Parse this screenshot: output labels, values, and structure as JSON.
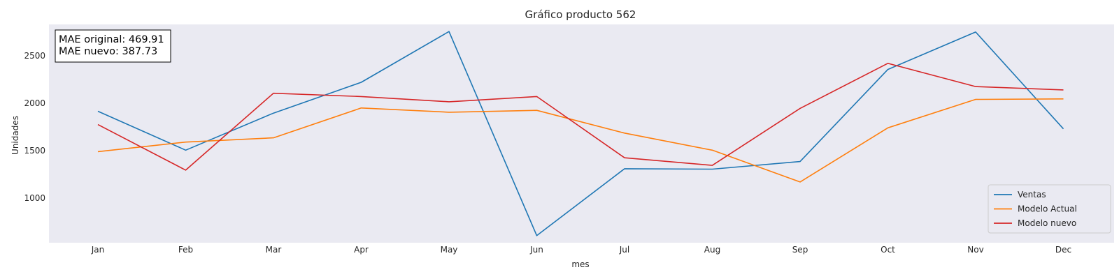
{
  "chart_data": {
    "type": "line",
    "title": "Gráfico producto 562",
    "xlabel": "mes",
    "ylabel": "Unidades",
    "categories": [
      "Jan",
      "Feb",
      "Mar",
      "Apr",
      "May",
      "Jun",
      "Jul",
      "Aug",
      "Sep",
      "Oct",
      "Nov",
      "Dec"
    ],
    "ylim": [
      530,
      2830
    ],
    "yticks": [
      1000,
      1500,
      2000,
      2500
    ],
    "grid": false,
    "legend_position": "bottom-right",
    "series": [
      {
        "name": "Ventas",
        "color": "#1f77b4",
        "values": [
          1915,
          1505,
          1895,
          2220,
          2755,
          605,
          1310,
          1305,
          1385,
          2355,
          2750,
          1730
        ]
      },
      {
        "name": "Modelo Actual",
        "color": "#ff7f0e",
        "values": [
          1490,
          1590,
          1635,
          1950,
          1905,
          1925,
          1685,
          1505,
          1170,
          1740,
          2040,
          2045
        ]
      },
      {
        "name": "Modelo nuevo",
        "color": "#d62728",
        "values": [
          1775,
          1295,
          2105,
          2070,
          2015,
          2070,
          1425,
          1345,
          1945,
          2420,
          2175,
          2140
        ]
      }
    ],
    "annotation": {
      "lines": [
        "MAE original: 469.91",
        "MAE nuevo: 387.73"
      ]
    }
  }
}
